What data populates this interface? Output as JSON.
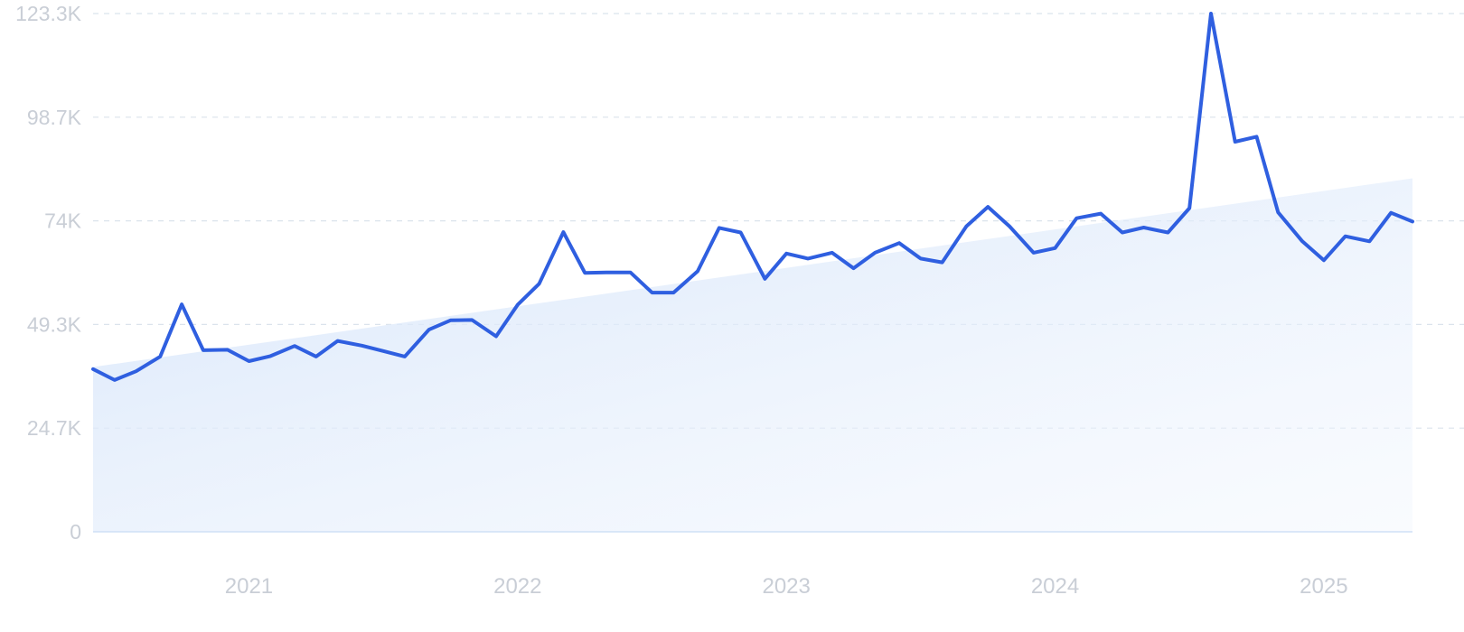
{
  "chart_data": {
    "type": "line",
    "y_ticks": [
      "0",
      "24.7K",
      "49.3K",
      "74K",
      "98.7K",
      "123.3K"
    ],
    "ylim": [
      0,
      123300
    ],
    "x_ticks": [
      "2021",
      "2022",
      "2023",
      "2024",
      "2025"
    ],
    "grid": true,
    "series": [
      {
        "values": [
          [
            2020.42,
            38700
          ],
          [
            2020.5,
            36100
          ],
          [
            2020.58,
            38200
          ],
          [
            2020.67,
            41700
          ],
          [
            2020.75,
            54100
          ],
          [
            2020.83,
            43200
          ],
          [
            2020.92,
            43300
          ],
          [
            2021.0,
            40600
          ],
          [
            2021.08,
            41800
          ],
          [
            2021.17,
            44200
          ],
          [
            2021.25,
            41700
          ],
          [
            2021.33,
            45400
          ],
          [
            2021.42,
            44300
          ],
          [
            2021.5,
            43000
          ],
          [
            2021.58,
            41700
          ],
          [
            2021.67,
            48100
          ],
          [
            2021.75,
            50300
          ],
          [
            2021.83,
            50400
          ],
          [
            2021.92,
            46500
          ],
          [
            2022.0,
            54000
          ],
          [
            2022.08,
            59000
          ],
          [
            2022.17,
            71300
          ],
          [
            2022.25,
            61600
          ],
          [
            2022.33,
            61700
          ],
          [
            2022.42,
            61700
          ],
          [
            2022.5,
            56900
          ],
          [
            2022.58,
            56900
          ],
          [
            2022.67,
            62000
          ],
          [
            2022.75,
            72300
          ],
          [
            2022.83,
            71200
          ],
          [
            2022.92,
            60200
          ],
          [
            2023.0,
            66200
          ],
          [
            2023.08,
            65000
          ],
          [
            2023.17,
            66400
          ],
          [
            2023.25,
            62700
          ],
          [
            2023.33,
            66400
          ],
          [
            2023.42,
            68700
          ],
          [
            2023.5,
            65000
          ],
          [
            2023.58,
            64100
          ],
          [
            2023.67,
            72700
          ],
          [
            2023.75,
            77300
          ],
          [
            2023.83,
            72700
          ],
          [
            2023.92,
            66400
          ],
          [
            2024.0,
            67500
          ],
          [
            2024.08,
            74600
          ],
          [
            2024.17,
            75700
          ],
          [
            2024.25,
            71200
          ],
          [
            2024.33,
            72400
          ],
          [
            2024.42,
            71200
          ],
          [
            2024.5,
            77000
          ],
          [
            2024.58,
            123300
          ],
          [
            2024.67,
            92800
          ],
          [
            2024.75,
            94000
          ],
          [
            2024.83,
            76000
          ],
          [
            2024.92,
            69100
          ],
          [
            2025.0,
            64600
          ],
          [
            2025.08,
            70300
          ],
          [
            2025.17,
            69100
          ],
          [
            2025.25,
            75900
          ],
          [
            2025.33,
            73800
          ]
        ]
      }
    ],
    "trend": {
      "start": [
        2020.42,
        39200
      ],
      "end": [
        2025.33,
        84100
      ]
    },
    "colors": {
      "line": "#2f5fe0",
      "area": "#d8e7fb",
      "grid": "#dbe3ec",
      "tick_text": "#c9ced6"
    }
  }
}
